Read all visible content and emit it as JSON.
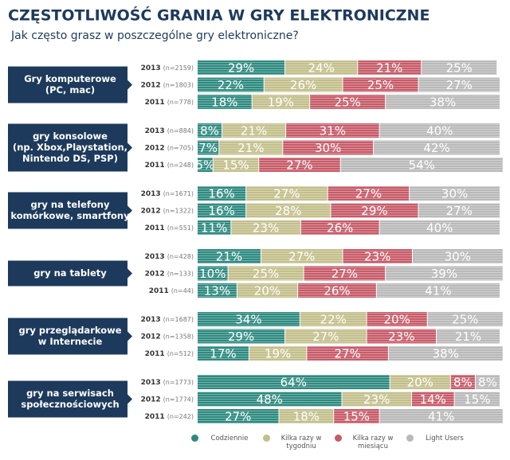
{
  "chart_data": {
    "type": "stacked-bar",
    "title": "CZĘSTOTLIWOŚĆ GRANIA W GRY ELEKTRONICZNE",
    "subtitle": "Jak często grasz w poszczególne gry elektroniczne?",
    "categories": [
      "2013",
      "2012",
      "2011",
      "2013",
      "2012",
      "2011",
      "2013",
      "2012",
      "2011",
      "2013",
      "2012",
      "2011",
      "2013",
      "2012",
      "2011",
      "2013",
      "2012",
      "2011"
    ],
    "sample_sizes": [
      "(n=2159)",
      "(n=1803)",
      "(n=778)",
      "(n=884)",
      "(n=705)",
      "(n=248)",
      "(n=1671)",
      "(n=1322)",
      "(n=551)",
      "(n=428)",
      "(n=133)",
      "(n=44)",
      "(n=1687)",
      "(n=1358)",
      "(n=512)",
      "(n=1773)",
      "(n=1774)",
      "(n=242)"
    ],
    "group_labels": [
      null,
      [
        "Gry komputerowe",
        "(PC, mac)"
      ],
      null,
      null,
      [
        "gry konsolowe",
        "(np. Xbox,Playstation,",
        "Nintendo DS, PSP)"
      ],
      null,
      null,
      [
        "gry na telefony",
        "komórkowe, smartfony"
      ],
      null,
      null,
      [
        "gry na tablety"
      ],
      null,
      null,
      [
        "gry przeglądarkowe",
        "w Internecie"
      ],
      null,
      null,
      [
        "gry na serwisach",
        "społecznościowych"
      ],
      null
    ],
    "series": [
      {
        "name": "Codziennie",
        "color": "#2e8a80",
        "values": [
          29,
          22,
          18,
          8,
          7,
          5,
          16,
          16,
          11,
          21,
          10,
          13,
          34,
          29,
          17,
          64,
          48,
          27
        ],
        "value_labels": [
          "29%",
          "22%",
          "18%",
          "8%",
          "7%",
          "5%",
          "16%",
          "16%",
          "11%",
          "21%",
          "10%",
          "13%",
          "34%",
          "29%",
          "17%",
          "64%",
          "48%",
          "27%"
        ]
      },
      {
        "name": "Kilka razy w tygodniu",
        "color": "#c3bf8b",
        "values": [
          24,
          26,
          19,
          21,
          21,
          15,
          27,
          28,
          23,
          27,
          25,
          20,
          22,
          27,
          19,
          20,
          23,
          18
        ],
        "value_labels": [
          "24%",
          "26%",
          "19%",
          "21%",
          "21%",
          "15%",
          "27%",
          "28%",
          "23%",
          "27%",
          "25%",
          "20%",
          "22%",
          "27%",
          "19%",
          "20%",
          "23%",
          "18%"
        ]
      },
      {
        "name": "Kilka razy w miesiącu",
        "color": "#c75b68",
        "values": [
          21,
          25,
          25,
          31,
          30,
          27,
          27,
          29,
          26,
          23,
          27,
          26,
          20,
          23,
          27,
          8,
          14,
          15
        ],
        "value_labels": [
          "21%",
          "25%",
          "25%",
          "31%",
          "30%",
          "27%",
          "27%",
          "29%",
          "26%",
          "23%",
          "27%",
          "26%",
          "20%",
          "23%",
          "27%",
          "8%",
          "14%",
          "15%"
        ]
      },
      {
        "name": "Light Users",
        "color": "#b9b9b9",
        "values": [
          25,
          27,
          38,
          40,
          42,
          54,
          30,
          27,
          40,
          30,
          39,
          41,
          25,
          21,
          38,
          8,
          15,
          41
        ],
        "value_labels": [
          "25%",
          "27%",
          "38%",
          "40%",
          "42%",
          "54%",
          "30%",
          "27%",
          "40%",
          "30%",
          "39%",
          "41%",
          "25%",
          "21%",
          "38%",
          "8%",
          "15%",
          "41%"
        ]
      }
    ]
  }
}
